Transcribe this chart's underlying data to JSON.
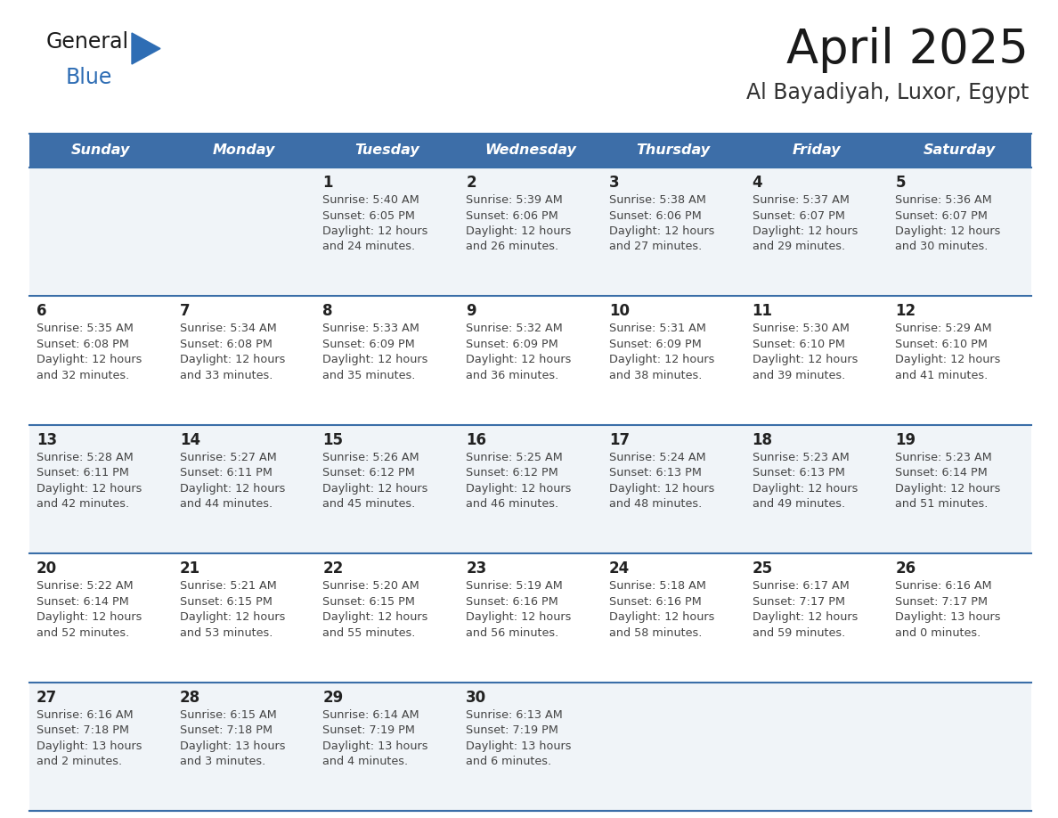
{
  "title": "April 2025",
  "subtitle": "Al Bayadiyah, Luxor, Egypt",
  "days_of_week": [
    "Sunday",
    "Monday",
    "Tuesday",
    "Wednesday",
    "Thursday",
    "Friday",
    "Saturday"
  ],
  "header_bg_color": "#3d6ea8",
  "header_text_color": "#ffffff",
  "cell_bg_color_light": "#f0f4f8",
  "cell_bg_color_white": "#ffffff",
  "day_number_color": "#222222",
  "cell_text_color": "#444444",
  "row_line_color": "#3a6ea8",
  "title_color": "#1a1a1a",
  "subtitle_color": "#333333",
  "logo_general_color": "#1a1a1a",
  "logo_blue_color": "#2e6db4",
  "calendar_data": [
    [
      {
        "day": null,
        "info": null
      },
      {
        "day": null,
        "info": null
      },
      {
        "day": 1,
        "info": "Sunrise: 5:40 AM\nSunset: 6:05 PM\nDaylight: 12 hours\nand 24 minutes."
      },
      {
        "day": 2,
        "info": "Sunrise: 5:39 AM\nSunset: 6:06 PM\nDaylight: 12 hours\nand 26 minutes."
      },
      {
        "day": 3,
        "info": "Sunrise: 5:38 AM\nSunset: 6:06 PM\nDaylight: 12 hours\nand 27 minutes."
      },
      {
        "day": 4,
        "info": "Sunrise: 5:37 AM\nSunset: 6:07 PM\nDaylight: 12 hours\nand 29 minutes."
      },
      {
        "day": 5,
        "info": "Sunrise: 5:36 AM\nSunset: 6:07 PM\nDaylight: 12 hours\nand 30 minutes."
      }
    ],
    [
      {
        "day": 6,
        "info": "Sunrise: 5:35 AM\nSunset: 6:08 PM\nDaylight: 12 hours\nand 32 minutes."
      },
      {
        "day": 7,
        "info": "Sunrise: 5:34 AM\nSunset: 6:08 PM\nDaylight: 12 hours\nand 33 minutes."
      },
      {
        "day": 8,
        "info": "Sunrise: 5:33 AM\nSunset: 6:09 PM\nDaylight: 12 hours\nand 35 minutes."
      },
      {
        "day": 9,
        "info": "Sunrise: 5:32 AM\nSunset: 6:09 PM\nDaylight: 12 hours\nand 36 minutes."
      },
      {
        "day": 10,
        "info": "Sunrise: 5:31 AM\nSunset: 6:09 PM\nDaylight: 12 hours\nand 38 minutes."
      },
      {
        "day": 11,
        "info": "Sunrise: 5:30 AM\nSunset: 6:10 PM\nDaylight: 12 hours\nand 39 minutes."
      },
      {
        "day": 12,
        "info": "Sunrise: 5:29 AM\nSunset: 6:10 PM\nDaylight: 12 hours\nand 41 minutes."
      }
    ],
    [
      {
        "day": 13,
        "info": "Sunrise: 5:28 AM\nSunset: 6:11 PM\nDaylight: 12 hours\nand 42 minutes."
      },
      {
        "day": 14,
        "info": "Sunrise: 5:27 AM\nSunset: 6:11 PM\nDaylight: 12 hours\nand 44 minutes."
      },
      {
        "day": 15,
        "info": "Sunrise: 5:26 AM\nSunset: 6:12 PM\nDaylight: 12 hours\nand 45 minutes."
      },
      {
        "day": 16,
        "info": "Sunrise: 5:25 AM\nSunset: 6:12 PM\nDaylight: 12 hours\nand 46 minutes."
      },
      {
        "day": 17,
        "info": "Sunrise: 5:24 AM\nSunset: 6:13 PM\nDaylight: 12 hours\nand 48 minutes."
      },
      {
        "day": 18,
        "info": "Sunrise: 5:23 AM\nSunset: 6:13 PM\nDaylight: 12 hours\nand 49 minutes."
      },
      {
        "day": 19,
        "info": "Sunrise: 5:23 AM\nSunset: 6:14 PM\nDaylight: 12 hours\nand 51 minutes."
      }
    ],
    [
      {
        "day": 20,
        "info": "Sunrise: 5:22 AM\nSunset: 6:14 PM\nDaylight: 12 hours\nand 52 minutes."
      },
      {
        "day": 21,
        "info": "Sunrise: 5:21 AM\nSunset: 6:15 PM\nDaylight: 12 hours\nand 53 minutes."
      },
      {
        "day": 22,
        "info": "Sunrise: 5:20 AM\nSunset: 6:15 PM\nDaylight: 12 hours\nand 55 minutes."
      },
      {
        "day": 23,
        "info": "Sunrise: 5:19 AM\nSunset: 6:16 PM\nDaylight: 12 hours\nand 56 minutes."
      },
      {
        "day": 24,
        "info": "Sunrise: 5:18 AM\nSunset: 6:16 PM\nDaylight: 12 hours\nand 58 minutes."
      },
      {
        "day": 25,
        "info": "Sunrise: 6:17 AM\nSunset: 7:17 PM\nDaylight: 12 hours\nand 59 minutes."
      },
      {
        "day": 26,
        "info": "Sunrise: 6:16 AM\nSunset: 7:17 PM\nDaylight: 13 hours\nand 0 minutes."
      }
    ],
    [
      {
        "day": 27,
        "info": "Sunrise: 6:16 AM\nSunset: 7:18 PM\nDaylight: 13 hours\nand 2 minutes."
      },
      {
        "day": 28,
        "info": "Sunrise: 6:15 AM\nSunset: 7:18 PM\nDaylight: 13 hours\nand 3 minutes."
      },
      {
        "day": 29,
        "info": "Sunrise: 6:14 AM\nSunset: 7:19 PM\nDaylight: 13 hours\nand 4 minutes."
      },
      {
        "day": 30,
        "info": "Sunrise: 6:13 AM\nSunset: 7:19 PM\nDaylight: 13 hours\nand 6 minutes."
      },
      {
        "day": null,
        "info": null
      },
      {
        "day": null,
        "info": null
      },
      {
        "day": null,
        "info": null
      }
    ]
  ]
}
